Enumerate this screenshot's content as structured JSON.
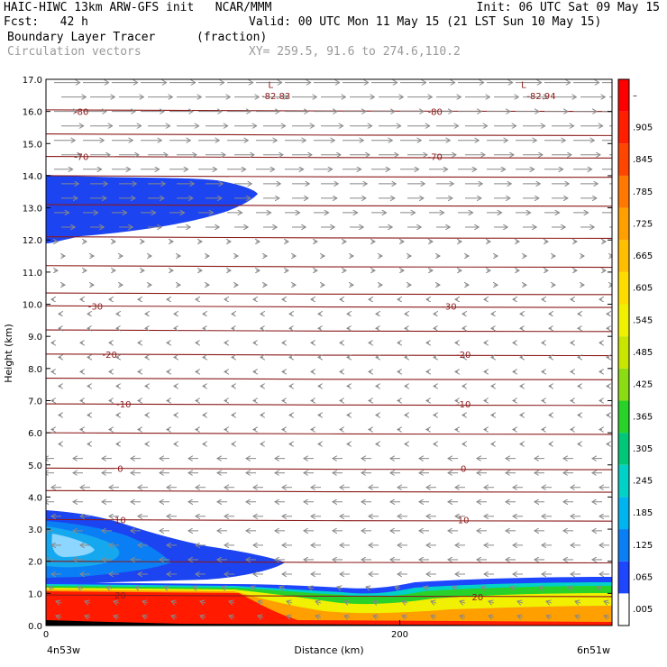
{
  "header": {
    "model": "HAIC-HIWC 13km ARW-GFS init   NCAR/MMM",
    "init": "Init: 06 UTC Sat 09 May 15",
    "fcst": "Fcst:   42 h",
    "valid": "Valid: 00 UTC Mon 11 May 15 (21 LST Sun 10 May 15)",
    "field": "Boundary Layer Tracer",
    "units": "(fraction)",
    "overlay": "Circulation vectors",
    "xy": "XY= 259.5, 91.6 to 274.6,110.2"
  },
  "chart_data": {
    "type": "heatmap",
    "ylabel": "Height (km)",
    "xlabel": "Distance (km)",
    "x_left_label": "4n53w",
    "x_right_label": "6n51w",
    "x_ticks": [
      0,
      200
    ],
    "x_range": [
      0,
      320
    ],
    "ylim": [
      0,
      17
    ],
    "y_ticks": [
      "0.0",
      "1.0",
      "2.0",
      "3.0",
      "4.0",
      "5.0",
      "6.0",
      "7.0",
      "8.0",
      "9.0",
      "10.0",
      "11.0",
      "12.0",
      "13.0",
      "14.0",
      "15.0",
      "16.0",
      "17.0"
    ],
    "colorbar_labels": [
      ".005",
      ".065",
      ".125",
      ".185",
      ".245",
      ".305",
      ".365",
      ".425",
      ".485",
      ".545",
      ".605",
      ".665",
      ".725",
      ".785",
      ".845",
      ".905",
      "–"
    ],
    "colorbar_colors": [
      "#ffffff",
      "#1e46ff",
      "#0a7ff5",
      "#00b4f0",
      "#00d2c8",
      "#00c878",
      "#28d228",
      "#8cdc14",
      "#c8e600",
      "#f0f000",
      "#ffdc00",
      "#ffbe00",
      "#ffa000",
      "#ff7800",
      "#ff4600",
      "#ff1e00",
      "#ff0000"
    ],
    "contour_labels": [
      {
        "value": "-82.83",
        "x": 130,
        "y": 16.5
      },
      {
        "value": "-82.94",
        "x": 280,
        "y": 16.5
      },
      {
        "value": "-80",
        "x": 20,
        "y": 16.0
      },
      {
        "value": "-80",
        "x": 220,
        "y": 16.0
      },
      {
        "value": "-70",
        "x": 20,
        "y": 14.6
      },
      {
        "value": "-70",
        "x": 220,
        "y": 14.6
      },
      {
        "value": "-30",
        "x": 28,
        "y": 9.95
      },
      {
        "value": "-30",
        "x": 228,
        "y": 9.95
      },
      {
        "value": "-20",
        "x": 36,
        "y": 8.45
      },
      {
        "value": "-20",
        "x": 236,
        "y": 8.45
      },
      {
        "value": "-10",
        "x": 44,
        "y": 6.9
      },
      {
        "value": "-10",
        "x": 236,
        "y": 6.9
      },
      {
        "value": "0",
        "x": 42,
        "y": 4.9
      },
      {
        "value": "0",
        "x": 236,
        "y": 4.9
      },
      {
        "value": "10",
        "x": 42,
        "y": 3.3
      },
      {
        "value": "10",
        "x": 236,
        "y": 3.3
      },
      {
        "value": "20",
        "x": 42,
        "y": 0.95
      },
      {
        "value": "20",
        "x": 244,
        "y": 0.9
      }
    ],
    "low_markers": [
      {
        "label": "L",
        "x": 127
      },
      {
        "label": "L",
        "x": 270
      }
    ]
  }
}
